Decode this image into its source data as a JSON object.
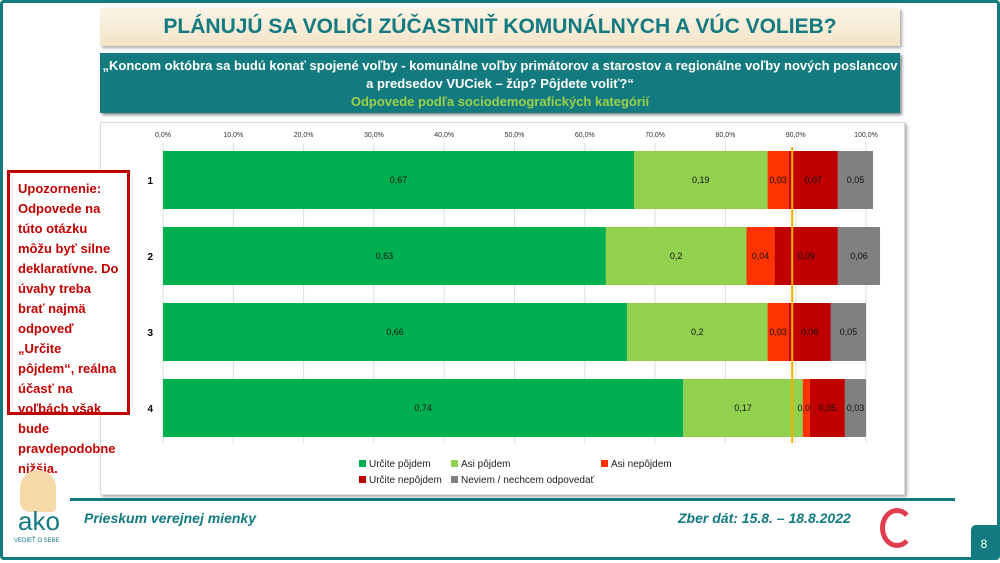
{
  "title": "PLÁNUJÚ SA VOLIČI ZÚČASTNIŤ KOMUNÁLNYCH A VÚC VOLIEB?",
  "question_line1": "„Koncom októbra sa budú konať spojené voľby - komunálne voľby primátorov a starostov a regionálne voľby nových poslancov",
  "question_line2": "a predsedov VUCiek – žúp? Pôjdete voliť?“",
  "subtitle": "Odpovede podľa sociodemografických kategórií",
  "warning": "Upozornenie: Odpovede na túto otázku môžu byť silne deklaratívne. Do úvahy treba brať najmä odpoveď „Určite pôjdem“, reálna účasť na voľbách však bude pravdepodobne nižšia.",
  "footer": {
    "left": "Prieskum verejnej mienky",
    "right": "Zber dát: 15.8. – 18.8.2022",
    "page": "8",
    "logo_text": "ako",
    "logo_tagline": "VEDIEŤ O SEBE"
  },
  "chart_data": {
    "type": "bar",
    "orientation": "horizontal",
    "stacked": true,
    "categories": [
      "1",
      "2",
      "3",
      "4"
    ],
    "xlim": [
      0,
      100
    ],
    "x_ticks": [
      "0,0%",
      "10,0%",
      "20,0%",
      "30,0%",
      "40,0%",
      "50,0%",
      "60,0%",
      "70,0%",
      "80,0%",
      "90,0%",
      "100,0%"
    ],
    "reference_line": 89.5,
    "reference_color": "#f5b000",
    "grid": true,
    "legend": "bottom",
    "series": [
      {
        "name": "Určite pôjdem",
        "color": "#00b050",
        "values": [
          0.67,
          0.63,
          0.66,
          0.74
        ]
      },
      {
        "name": "Asi pôjdem",
        "color": "#92d050",
        "values": [
          0.19,
          0.2,
          0.2,
          0.17
        ]
      },
      {
        "name": "Asi nepôjdem",
        "color": "#ff3300",
        "values": [
          0.03,
          0.04,
          0.03,
          0.01
        ]
      },
      {
        "name": "Určite nepôjdem",
        "color": "#c00000",
        "values": [
          0.07,
          0.09,
          0.06,
          0.05
        ]
      },
      {
        "name": "Neviem / nechcem odpovedať",
        "color": "#808080",
        "values": [
          0.05,
          0.06,
          0.05,
          0.03
        ]
      }
    ]
  }
}
